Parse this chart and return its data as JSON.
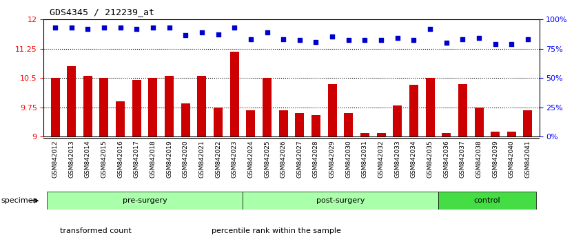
{
  "title": "GDS4345 / 212239_at",
  "categories": [
    "GSM842012",
    "GSM842013",
    "GSM842014",
    "GSM842015",
    "GSM842016",
    "GSM842017",
    "GSM842018",
    "GSM842019",
    "GSM842020",
    "GSM842021",
    "GSM842022",
    "GSM842023",
    "GSM842024",
    "GSM842025",
    "GSM842026",
    "GSM842027",
    "GSM842028",
    "GSM842029",
    "GSM842030",
    "GSM842031",
    "GSM842032",
    "GSM842033",
    "GSM842034",
    "GSM842035",
    "GSM842036",
    "GSM842037",
    "GSM842038",
    "GSM842039",
    "GSM842040",
    "GSM842041"
  ],
  "bar_values": [
    10.5,
    10.8,
    10.55,
    10.5,
    9.9,
    10.45,
    10.5,
    10.55,
    9.85,
    10.55,
    9.75,
    11.18,
    9.68,
    10.5,
    9.68,
    9.6,
    9.55,
    10.35,
    9.6,
    9.1,
    9.1,
    9.8,
    10.32,
    10.5,
    9.1,
    10.35,
    9.75,
    9.12,
    9.12,
    9.68
  ],
  "blue_dot_values": [
    11.8,
    11.8,
    11.75,
    11.8,
    11.8,
    11.75,
    11.8,
    11.8,
    11.6,
    11.67,
    11.62,
    11.8,
    11.5,
    11.67,
    11.5,
    11.47,
    11.43,
    11.57,
    11.47,
    11.47,
    11.47,
    11.53,
    11.47,
    11.75,
    11.4,
    11.5,
    11.53,
    11.37,
    11.37,
    11.5
  ],
  "ylim_left": [
    9.0,
    12.0
  ],
  "ylim_right": [
    0,
    100
  ],
  "yticks_left": [
    9.0,
    9.75,
    10.5,
    11.25,
    12.0
  ],
  "yticks_right": [
    0,
    25,
    50,
    75,
    100
  ],
  "ytick_labels_left": [
    "9",
    "9.75",
    "10.5",
    "11.25",
    "12"
  ],
  "ytick_labels_right": [
    "0%",
    "25%",
    "50%",
    "75%",
    "100%"
  ],
  "groups": [
    {
      "label": "pre-surgery",
      "start": 0,
      "end": 11
    },
    {
      "label": "post-surgery",
      "start": 12,
      "end": 23
    },
    {
      "label": "control",
      "start": 24,
      "end": 29
    }
  ],
  "group_color_light": "#aaffaa",
  "group_color_dark": "#44dd44",
  "bar_color": "#cc0000",
  "dot_color": "#0000cc",
  "bar_baseline": 9.0,
  "legend_items": [
    {
      "label": "transformed count",
      "color": "#cc0000"
    },
    {
      "label": "percentile rank within the sample",
      "color": "#0000cc"
    }
  ],
  "specimen_label": "specimen",
  "background_color": "#ffffff",
  "xtick_bg": "#dddddd"
}
